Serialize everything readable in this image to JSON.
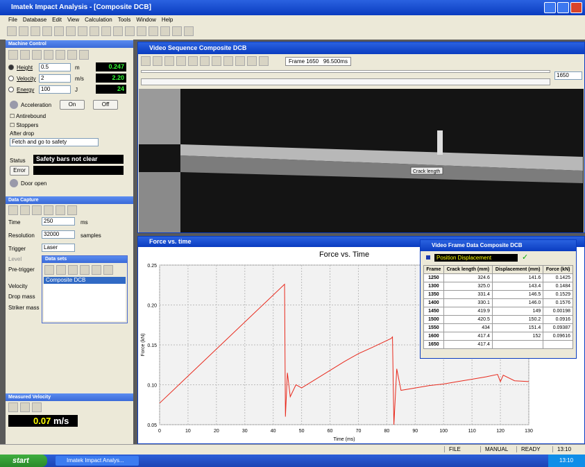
{
  "window": {
    "title": "Imatek Impact Analysis - [Composite DCB]"
  },
  "menu": [
    "File",
    "Database",
    "Edit",
    "View",
    "Calculation",
    "Tools",
    "Window",
    "Help"
  ],
  "machine_control": {
    "title": "Machine Control",
    "height": {
      "label": "Height",
      "value": "0.5",
      "unit": "m",
      "reading": "0.247"
    },
    "velocity": {
      "label": "Velocity",
      "value": "2",
      "unit": "m/s",
      "reading": "2.20"
    },
    "energy": {
      "label": "Energy",
      "value": "100",
      "unit": "J",
      "reading": "24"
    },
    "acceleration": "Acceleration",
    "on": "On",
    "off": "Off",
    "antirebound": "Antirebound",
    "stoppers": "Stoppers",
    "after_drop": "After drop",
    "after_drop_value": "Fetch and go to safety",
    "status_label": "Status",
    "status": "Safety bars not clear",
    "error": "Error",
    "door": "Door open"
  },
  "data_capture": {
    "title": "Data Capture",
    "time": {
      "label": "Time",
      "value": "250",
      "unit": "ms"
    },
    "resolution": {
      "label": "Resolution",
      "value": "32000",
      "unit": "samples"
    },
    "trigger": {
      "label": "Trigger",
      "value": "Laser"
    },
    "level": "Level",
    "pre_trigger": "Pre-trigger",
    "velocity": "Velocity",
    "drop_mass": "Drop mass",
    "striker_mass": "Striker mass"
  },
  "data_sets": {
    "title": "Data sets",
    "items": [
      "Composite DCB"
    ]
  },
  "measured_velocity": {
    "title": "Measured Velocity",
    "value": "0.07",
    "unit": "m/s"
  },
  "video": {
    "title": "Video Sequence Composite DCB",
    "frame": "Frame 1650",
    "time": "96.500ms",
    "slider": "1650",
    "annotation": "Crack length"
  },
  "force_window": {
    "title": "Force vs. time"
  },
  "chart_data": {
    "type": "line",
    "title": "Force vs. Time",
    "x_label": "Time (ms)",
    "y_label": "Force (kN)",
    "color": "#e8291c",
    "x": [
      0,
      44,
      44.3,
      45,
      46,
      48,
      50,
      55,
      60,
      65,
      70,
      75,
      81.5,
      82,
      82.5,
      83.5,
      85,
      90,
      95,
      100,
      105,
      110,
      115,
      119,
      120,
      121,
      125,
      130
    ],
    "values": [
      0.077,
      0.226,
      0.06,
      0.115,
      0.085,
      0.1,
      0.096,
      0.107,
      0.118,
      0.129,
      0.139,
      0.147,
      0.158,
      0.16,
      0.05,
      0.12,
      0.093,
      0.096,
      0.099,
      0.101,
      0.104,
      0.107,
      0.11,
      0.113,
      0.104,
      0.112,
      0.105,
      0.104
    ],
    "xlim": [
      0,
      130
    ],
    "ylim": [
      0.05,
      0.25
    ],
    "xticks": [
      0,
      10,
      20,
      30,
      40,
      50,
      60,
      70,
      80,
      90,
      100,
      110,
      120,
      130
    ],
    "yticks": [
      0.05,
      {
        "value": 0.1,
        "label": "0.10"
      },
      0.15,
      {
        "value": 0.2,
        "label": "0.20"
      },
      0.25
    ],
    "grid": true
  },
  "frame_table": {
    "title": "Video Frame Data Composite DCB",
    "dropdown": "Position Displacement",
    "columns": [
      "Frame",
      "Crack length (mm)",
      "Displacement (mm)",
      "Force (kN)"
    ],
    "rows": [
      [
        "1250",
        "324.6",
        "141.6",
        "0.1425"
      ],
      [
        "1300",
        "325.0",
        "143.4",
        "0.1484"
      ],
      [
        "1350",
        "331.4",
        "146.5",
        "0.1529"
      ],
      [
        "1400",
        "330.1",
        "146.0",
        "0.1576"
      ],
      [
        "1450",
        "419.9",
        "149",
        "0.00198"
      ],
      [
        "1500",
        "420.5",
        "150.2",
        "0.0916"
      ],
      [
        "1550",
        "434",
        "151.4",
        "0.09387"
      ],
      [
        "1600",
        "417.4",
        "152",
        "0.09616"
      ],
      [
        "1650",
        "417.4"
      ]
    ]
  },
  "status_bar": [
    "FILE",
    "MANUAL",
    "READY",
    "13:10"
  ],
  "taskbar": {
    "start": "start",
    "task": "Imatek Impact Analys...",
    "clock": "13:10"
  }
}
